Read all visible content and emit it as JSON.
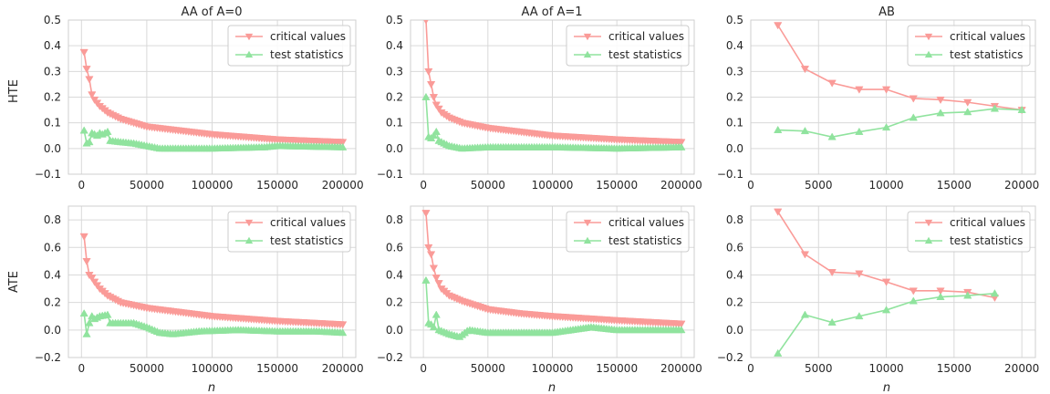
{
  "colors": {
    "critical": "#fa9b98",
    "test": "#90e39e",
    "grid": "#d9d9d9",
    "frame": "#cfcfcf"
  },
  "panel_titles": [
    "AA of A=0",
    "AA of A=1",
    "AB"
  ],
  "row_labels": [
    "HTE",
    "ATE"
  ],
  "xlabel": "n",
  "legend": {
    "critical": "critical values",
    "test": "test statistics",
    "placement": "top-right"
  },
  "chart_data": [
    {
      "type": "line",
      "title": "AA of A=0",
      "ylabel": "HTE",
      "xlabel": "",
      "xlim": [
        -10000,
        210000
      ],
      "ylim": [
        -0.1,
        0.5
      ],
      "xticks": [
        0,
        50000,
        100000,
        150000,
        200000
      ],
      "yticks": [
        -0.1,
        0.0,
        0.1,
        0.2,
        0.3,
        0.4,
        0.5
      ],
      "ytick_decimals": 1,
      "grid": true,
      "legend_position": "top-right",
      "series": [
        {
          "name": "critical values",
          "marker": "triangle-down",
          "color": "#fa9b98",
          "x_start": 2000,
          "x_step": 2000,
          "count": 100,
          "anchors": [
            [
              2000,
              0.375
            ],
            [
              4000,
              0.31
            ],
            [
              6000,
              0.27
            ],
            [
              8000,
              0.21
            ],
            [
              10000,
              0.19
            ],
            [
              14000,
              0.165
            ],
            [
              20000,
              0.14
            ],
            [
              30000,
              0.115
            ],
            [
              50000,
              0.085
            ],
            [
              75000,
              0.07
            ],
            [
              100000,
              0.055
            ],
            [
              150000,
              0.035
            ],
            [
              200000,
              0.025
            ]
          ]
        },
        {
          "name": "test statistics",
          "marker": "triangle-up",
          "color": "#90e39e",
          "x_start": 2000,
          "x_step": 2000,
          "count": 100,
          "anchors": [
            [
              2000,
              0.07
            ],
            [
              4000,
              0.02
            ],
            [
              6000,
              0.025
            ],
            [
              8000,
              0.06
            ],
            [
              10000,
              0.055
            ],
            [
              12000,
              0.05
            ],
            [
              14000,
              0.06
            ],
            [
              16000,
              0.055
            ],
            [
              20000,
              0.065
            ],
            [
              22000,
              0.03
            ],
            [
              30000,
              0.025
            ],
            [
              40000,
              0.02
            ],
            [
              50000,
              0.01
            ],
            [
              60000,
              0.0
            ],
            [
              100000,
              0.0
            ],
            [
              140000,
              0.005
            ],
            [
              150000,
              0.01
            ],
            [
              200000,
              0.005
            ]
          ]
        }
      ]
    },
    {
      "type": "line",
      "title": "AA of A=1",
      "ylabel": "",
      "xlabel": "",
      "xlim": [
        -10000,
        210000
      ],
      "ylim": [
        -0.1,
        0.5
      ],
      "xticks": [
        0,
        50000,
        100000,
        150000,
        200000
      ],
      "yticks": [
        -0.1,
        0.0,
        0.1,
        0.2,
        0.3,
        0.4,
        0.5
      ],
      "ytick_decimals": 1,
      "grid": true,
      "legend_position": "top-right",
      "series": [
        {
          "name": "critical values",
          "marker": "triangle-down",
          "color": "#fa9b98",
          "x_start": 2000,
          "x_step": 2000,
          "count": 100,
          "anchors": [
            [
              2000,
              0.5
            ],
            [
              4000,
              0.3
            ],
            [
              6000,
              0.25
            ],
            [
              8000,
              0.2
            ],
            [
              10000,
              0.17
            ],
            [
              14000,
              0.14
            ],
            [
              20000,
              0.12
            ],
            [
              30000,
              0.1
            ],
            [
              50000,
              0.08
            ],
            [
              75000,
              0.065
            ],
            [
              100000,
              0.05
            ],
            [
              150000,
              0.035
            ],
            [
              200000,
              0.025
            ]
          ]
        },
        {
          "name": "test statistics",
          "marker": "triangle-up",
          "color": "#90e39e",
          "x_start": 2000,
          "x_step": 2000,
          "count": 100,
          "anchors": [
            [
              2000,
              0.2
            ],
            [
              4000,
              0.045
            ],
            [
              6000,
              0.04
            ],
            [
              8000,
              0.05
            ],
            [
              10000,
              0.065
            ],
            [
              12000,
              0.03
            ],
            [
              16000,
              0.02
            ],
            [
              20000,
              0.01
            ],
            [
              30000,
              0.0
            ],
            [
              50000,
              0.005
            ],
            [
              100000,
              0.005
            ],
            [
              150000,
              0.0
            ],
            [
              200000,
              0.005
            ]
          ]
        }
      ]
    },
    {
      "type": "line",
      "title": "AB",
      "ylabel": "",
      "xlabel": "",
      "xlim": [
        0,
        21000
      ],
      "ylim": [
        -0.1,
        0.5
      ],
      "xticks": [
        0,
        5000,
        10000,
        15000,
        20000
      ],
      "yticks": [
        -0.1,
        0.0,
        0.1,
        0.2,
        0.3,
        0.4,
        0.5
      ],
      "ytick_decimals": 1,
      "grid": true,
      "legend_position": "top-right",
      "series": [
        {
          "name": "critical values",
          "marker": "triangle-down",
          "color": "#fa9b98",
          "x": [
            2000,
            4000,
            6000,
            8000,
            10000,
            12000,
            14000,
            16000,
            18000,
            20000
          ],
          "y": [
            0.48,
            0.31,
            0.255,
            0.23,
            0.23,
            0.195,
            0.19,
            0.18,
            0.165,
            0.15
          ]
        },
        {
          "name": "test statistics",
          "marker": "triangle-up",
          "color": "#90e39e",
          "x": [
            2000,
            4000,
            6000,
            8000,
            10000,
            12000,
            14000,
            16000,
            18000,
            20000
          ],
          "y": [
            0.072,
            0.068,
            0.045,
            0.065,
            0.082,
            0.12,
            0.138,
            0.142,
            0.155,
            0.15
          ]
        }
      ]
    },
    {
      "type": "line",
      "title": "",
      "ylabel": "ATE",
      "xlabel": "n",
      "xlim": [
        -10000,
        210000
      ],
      "ylim": [
        -0.2,
        0.9
      ],
      "xticks": [
        0,
        50000,
        100000,
        150000,
        200000
      ],
      "yticks": [
        -0.2,
        0.0,
        0.2,
        0.4,
        0.6,
        0.8
      ],
      "ytick_decimals": 1,
      "grid": true,
      "legend_position": "top-right",
      "series": [
        {
          "name": "critical values",
          "marker": "triangle-down",
          "color": "#fa9b98",
          "x_start": 2000,
          "x_step": 2000,
          "count": 100,
          "anchors": [
            [
              2000,
              0.68
            ],
            [
              4000,
              0.5
            ],
            [
              6000,
              0.4
            ],
            [
              8000,
              0.38
            ],
            [
              10000,
              0.35
            ],
            [
              14000,
              0.3
            ],
            [
              20000,
              0.25
            ],
            [
              30000,
              0.2
            ],
            [
              50000,
              0.16
            ],
            [
              75000,
              0.13
            ],
            [
              100000,
              0.1
            ],
            [
              150000,
              0.065
            ],
            [
              200000,
              0.04
            ]
          ]
        },
        {
          "name": "test statistics",
          "marker": "triangle-up",
          "color": "#90e39e",
          "x_start": 2000,
          "x_step": 2000,
          "count": 100,
          "anchors": [
            [
              2000,
              0.12
            ],
            [
              4000,
              -0.03
            ],
            [
              6000,
              0.05
            ],
            [
              8000,
              0.1
            ],
            [
              10000,
              0.08
            ],
            [
              14000,
              0.1
            ],
            [
              20000,
              0.11
            ],
            [
              22000,
              0.05
            ],
            [
              30000,
              0.05
            ],
            [
              40000,
              0.05
            ],
            [
              50000,
              0.02
            ],
            [
              60000,
              -0.02
            ],
            [
              70000,
              -0.03
            ],
            [
              90000,
              -0.01
            ],
            [
              120000,
              0.0
            ],
            [
              150000,
              -0.01
            ],
            [
              180000,
              -0.01
            ],
            [
              200000,
              -0.02
            ]
          ]
        }
      ]
    },
    {
      "type": "line",
      "title": "",
      "ylabel": "",
      "xlabel": "n",
      "xlim": [
        -10000,
        210000
      ],
      "ylim": [
        -0.2,
        0.9
      ],
      "xticks": [
        0,
        50000,
        100000,
        150000,
        200000
      ],
      "yticks": [
        -0.2,
        0.0,
        0.2,
        0.4,
        0.6,
        0.8
      ],
      "ytick_decimals": 1,
      "grid": true,
      "legend_position": "top-right",
      "series": [
        {
          "name": "critical values",
          "marker": "triangle-down",
          "color": "#fa9b98",
          "x_start": 2000,
          "x_step": 2000,
          "count": 100,
          "anchors": [
            [
              2000,
              0.85
            ],
            [
              4000,
              0.6
            ],
            [
              6000,
              0.55
            ],
            [
              8000,
              0.45
            ],
            [
              10000,
              0.38
            ],
            [
              14000,
              0.3
            ],
            [
              20000,
              0.25
            ],
            [
              30000,
              0.21
            ],
            [
              50000,
              0.15
            ],
            [
              75000,
              0.12
            ],
            [
              100000,
              0.1
            ],
            [
              150000,
              0.07
            ],
            [
              200000,
              0.045
            ]
          ]
        },
        {
          "name": "test statistics",
          "marker": "triangle-up",
          "color": "#90e39e",
          "x_start": 2000,
          "x_step": 2000,
          "count": 100,
          "anchors": [
            [
              2000,
              0.36
            ],
            [
              4000,
              0.05
            ],
            [
              6000,
              0.04
            ],
            [
              8000,
              0.02
            ],
            [
              10000,
              0.11
            ],
            [
              12000,
              0.0
            ],
            [
              20000,
              -0.03
            ],
            [
              28000,
              -0.05
            ],
            [
              35000,
              0.0
            ],
            [
              50000,
              -0.02
            ],
            [
              100000,
              -0.02
            ],
            [
              130000,
              0.02
            ],
            [
              150000,
              0.0
            ],
            [
              200000,
              0.0
            ]
          ]
        }
      ]
    },
    {
      "type": "line",
      "title": "",
      "ylabel": "",
      "xlabel": "n",
      "xlim": [
        0,
        21000
      ],
      "ylim": [
        -0.2,
        0.9
      ],
      "xticks": [
        0,
        5000,
        10000,
        15000,
        20000
      ],
      "yticks": [
        -0.2,
        0.0,
        0.2,
        0.4,
        0.6,
        0.8
      ],
      "ytick_decimals": 1,
      "grid": true,
      "legend_position": "top-right",
      "series": [
        {
          "name": "critical values",
          "marker": "triangle-down",
          "color": "#fa9b98",
          "x": [
            2000,
            4000,
            6000,
            8000,
            10000,
            12000,
            14000,
            16000,
            18000
          ],
          "y": [
            0.86,
            0.55,
            0.42,
            0.41,
            0.35,
            0.285,
            0.285,
            0.275,
            0.235
          ]
        },
        {
          "name": "test statistics",
          "marker": "triangle-up",
          "color": "#90e39e",
          "x": [
            2000,
            4000,
            6000,
            8000,
            10000,
            12000,
            14000,
            16000,
            18000
          ],
          "y": [
            -0.17,
            0.11,
            0.055,
            0.1,
            0.145,
            0.21,
            0.24,
            0.25,
            0.265
          ]
        }
      ]
    }
  ]
}
